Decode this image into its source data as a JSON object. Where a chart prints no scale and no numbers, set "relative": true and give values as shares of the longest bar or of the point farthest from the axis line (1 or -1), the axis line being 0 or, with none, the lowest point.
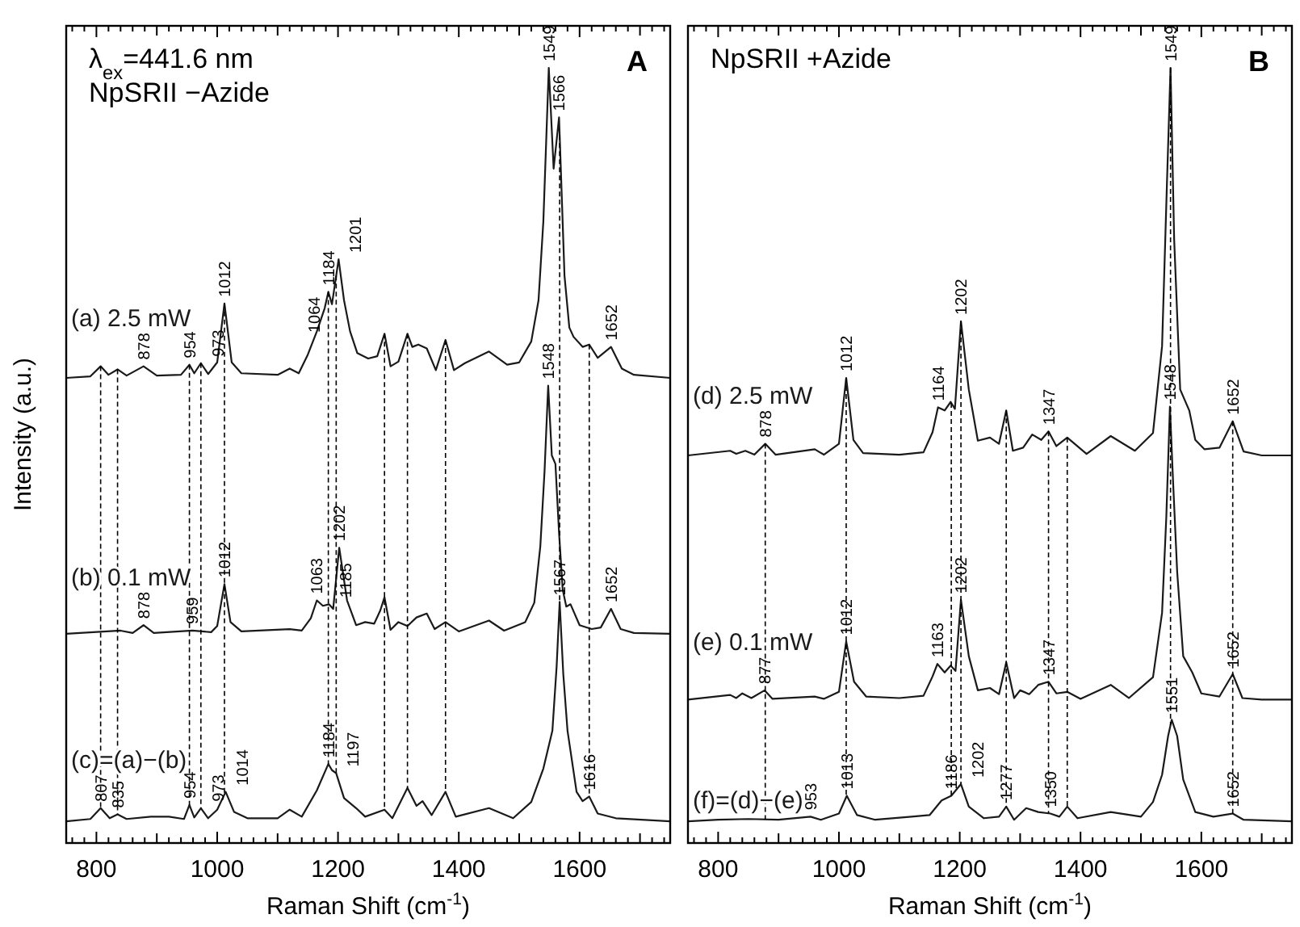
{
  "chart_data": [
    {
      "type": "line",
      "relative": true,
      "title": "λ$_{ex}$=441.6  nm",
      "subtitle": "NpSRII −Azide",
      "xlabel": "Raman Shift (cm$^{-1}$)",
      "ylabel": "Intensity (a.u.)",
      "xlim": [
        750,
        1750
      ],
      "xticks": [
        {
          "value": 760,
          "label": null
        },
        {
          "value": 780,
          "label": null
        },
        800,
        {
          "value": 820,
          "label": null
        },
        {
          "value": 840,
          "label": null
        },
        {
          "value": 860,
          "label": null
        },
        {
          "value": 880,
          "label": null
        },
        {
          "value": 900,
          "label": null
        },
        {
          "value": 920,
          "label": null
        },
        {
          "value": 940,
          "label": null
        },
        {
          "value": 960,
          "label": null
        },
        {
          "value": 980,
          "label": null
        },
        1000,
        {
          "value": 1020,
          "label": null
        },
        {
          "value": 1040,
          "label": null
        },
        {
          "value": 1060,
          "label": null
        },
        {
          "value": 1080,
          "label": null
        },
        {
          "value": 1100,
          "label": null
        },
        {
          "value": 1120,
          "label": null
        },
        {
          "value": 1140,
          "label": null
        },
        {
          "value": 1160,
          "label": null
        },
        {
          "value": 1180,
          "label": null
        },
        1200,
        {
          "value": 1220,
          "label": null
        },
        {
          "value": 1240,
          "label": null
        },
        {
          "value": 1260,
          "label": null
        },
        {
          "value": 1280,
          "label": null
        },
        {
          "value": 1300,
          "label": null
        },
        {
          "value": 1320,
          "label": null
        },
        {
          "value": 1340,
          "label": null
        },
        {
          "value": 1360,
          "label": null
        },
        {
          "value": 1380,
          "label": null
        },
        1400,
        {
          "value": 1420,
          "label": null
        },
        {
          "value": 1440,
          "label": null
        },
        {
          "value": 1460,
          "label": null
        },
        {
          "value": 1480,
          "label": null
        },
        {
          "value": 1500,
          "label": null
        },
        {
          "value": 1520,
          "label": null
        },
        {
          "value": 1540,
          "label": null
        },
        {
          "value": 1560,
          "label": null
        },
        {
          "value": 1580,
          "label": null
        },
        1600,
        {
          "value": 1620,
          "label": null
        },
        {
          "value": 1640,
          "label": null
        },
        {
          "value": 1660,
          "label": null
        },
        {
          "value": 1680,
          "label": null
        },
        {
          "value": 1700,
          "label": null
        },
        {
          "value": 1720,
          "label": null
        },
        {
          "value": 1740,
          "label": null
        }
      ],
      "series": [
        {
          "name": "(a) 2.5 mW",
          "color": "#1a1a1a",
          "x": [
            750,
            790,
            807,
            820,
            835,
            850,
            878,
            900,
            940,
            954,
            962,
            973,
            985,
            1000,
            1012,
            1024,
            1040,
            1100,
            1120,
            1135,
            1150,
            1165,
            1178,
            1184,
            1190,
            1201,
            1210,
            1220,
            1232,
            1250,
            1265,
            1277,
            1287,
            1300,
            1315,
            1323,
            1333,
            1347,
            1362,
            1378,
            1392,
            1410,
            1450,
            1480,
            1500,
            1520,
            1532,
            1540,
            1549,
            1557,
            1566,
            1575,
            1583,
            1590,
            1605,
            1616,
            1630,
            1652,
            1670,
            1690,
            1750
          ],
          "values": [
            0.6,
            0.602,
            0.615,
            0.604,
            0.611,
            0.603,
            0.615,
            0.603,
            0.604,
            0.617,
            0.606,
            0.619,
            0.605,
            0.62,
            0.696,
            0.62,
            0.606,
            0.604,
            0.612,
            0.606,
            0.63,
            0.66,
            0.69,
            0.711,
            0.695,
            0.753,
            0.7,
            0.66,
            0.632,
            0.625,
            0.628,
            0.657,
            0.615,
            0.621,
            0.657,
            0.64,
            0.643,
            0.638,
            0.61,
            0.649,
            0.61,
            0.619,
            0.634,
            0.617,
            0.62,
            0.647,
            0.7,
            0.802,
            1.0,
            0.87,
            0.936,
            0.732,
            0.665,
            0.653,
            0.64,
            0.643,
            0.626,
            0.64,
            0.612,
            0.604,
            0.6
          ]
        },
        {
          "name": "(b) 0.1 mW",
          "color": "#1a1a1a",
          "x": [
            750,
            840,
            860,
            878,
            895,
            959,
            990,
            1000,
            1012,
            1022,
            1040,
            1120,
            1140,
            1155,
            1165,
            1175,
            1185,
            1192,
            1202,
            1215,
            1230,
            1245,
            1260,
            1270,
            1277,
            1287,
            1300,
            1315,
            1330,
            1347,
            1360,
            1378,
            1400,
            1450,
            1475,
            1510,
            1525,
            1535,
            1542,
            1548,
            1554,
            1560,
            1566,
            1572,
            1578,
            1585,
            1600,
            1620,
            1635,
            1652,
            1668,
            1690,
            1750
          ],
          "values": [
            0.27,
            0.274,
            0.271,
            0.281,
            0.271,
            0.274,
            0.272,
            0.28,
            0.334,
            0.285,
            0.273,
            0.276,
            0.274,
            0.29,
            0.313,
            0.306,
            0.308,
            0.302,
            0.381,
            0.313,
            0.281,
            0.285,
            0.283,
            0.3,
            0.317,
            0.275,
            0.285,
            0.28,
            0.291,
            0.296,
            0.276,
            0.285,
            0.273,
            0.287,
            0.274,
            0.285,
            0.31,
            0.383,
            0.48,
            0.59,
            0.5,
            0.489,
            0.4,
            0.327,
            0.305,
            0.308,
            0.281,
            0.276,
            0.278,
            0.302,
            0.276,
            0.271,
            0.27
          ]
        },
        {
          "name": "(c)=(a)−(b)",
          "color": "#1a1a1a",
          "x": [
            750,
            790,
            807,
            822,
            835,
            850,
            890,
            920,
            945,
            954,
            962,
            973,
            985,
            1000,
            1014,
            1028,
            1050,
            1100,
            1120,
            1140,
            1165,
            1184,
            1190,
            1197,
            1210,
            1230,
            1245,
            1277,
            1290,
            1315,
            1330,
            1340,
            1355,
            1378,
            1395,
            1450,
            1490,
            1520,
            1540,
            1555,
            1562,
            1567,
            1573,
            1580,
            1595,
            1605,
            1616,
            1630,
            1660,
            1750
          ],
          "values": [
            0.028,
            0.031,
            0.045,
            0.032,
            0.037,
            0.031,
            0.034,
            0.034,
            0.031,
            0.049,
            0.033,
            0.045,
            0.032,
            0.043,
            0.066,
            0.04,
            0.032,
            0.032,
            0.043,
            0.034,
            0.068,
            0.102,
            0.094,
            0.09,
            0.058,
            0.045,
            0.034,
            0.043,
            0.032,
            0.071,
            0.048,
            0.054,
            0.036,
            0.066,
            0.034,
            0.045,
            0.032,
            0.053,
            0.096,
            0.145,
            0.228,
            0.311,
            0.218,
            0.145,
            0.066,
            0.054,
            0.06,
            0.038,
            0.032,
            0.028
          ]
        }
      ],
      "ref_lines": [
        {
          "axis": "x",
          "value": 807,
          "line_style": "dashed"
        },
        {
          "axis": "x",
          "value": 835,
          "line_style": "dashed"
        },
        {
          "axis": "x",
          "value": 954,
          "line_style": "dashed"
        },
        {
          "axis": "x",
          "value": 973,
          "line_style": "dashed"
        },
        {
          "axis": "x",
          "value": 1012,
          "line_style": "dashed"
        },
        {
          "axis": "x",
          "value": 1184,
          "line_style": "dashed"
        },
        {
          "axis": "x",
          "value": 1197,
          "line_style": "dashed"
        },
        {
          "axis": "x",
          "value": 1277,
          "line_style": "dashed"
        },
        {
          "axis": "x",
          "value": 1315,
          "line_style": "dashed"
        },
        {
          "axis": "x",
          "value": 1378,
          "line_style": "dashed"
        },
        {
          "axis": "x",
          "value": 1567,
          "line_style": "dashed"
        },
        {
          "axis": "x",
          "value": 1616,
          "line_style": "dashed"
        }
      ],
      "annotations": [
        "A",
        {
          "text": "878",
          "x": 878,
          "y": 0.615
        },
        {
          "text": "954",
          "x": 954,
          "y": 0.617
        },
        {
          "text": "973",
          "x": 973,
          "y": 0.619
        },
        {
          "text": "1012",
          "x": 1012,
          "y": 0.696
        },
        {
          "text": "1064",
          "x": 1160,
          "y": 0.65
        },
        {
          "text": "1184",
          "x": 1184,
          "y": 0.711
        },
        {
          "text": "1201",
          "x": 1201,
          "y": 0.753
        },
        {
          "text": "1549",
          "x": 1549,
          "y": 1.0
        },
        {
          "text": "1566",
          "x": 1566,
          "y": 0.936
        },
        {
          "text": "1652",
          "x": 1652,
          "y": 0.64
        },
        {
          "text": "878",
          "x": 878,
          "y": 0.281
        },
        {
          "text": "959",
          "x": 959,
          "y": 0.274
        },
        {
          "text": "1012",
          "x": 1012,
          "y": 0.334
        },
        {
          "text": "1063",
          "x": 1165,
          "y": 0.313
        },
        {
          "text": "1185",
          "x": 1185,
          "y": 0.308
        },
        {
          "text": "1202",
          "x": 1202,
          "y": 0.381
        },
        {
          "text": "1548",
          "x": 1548,
          "y": 0.59
        },
        {
          "text": "1652",
          "x": 1652,
          "y": 0.302
        },
        {
          "text": "807",
          "x": 807,
          "y": 0.045
        },
        {
          "text": "835",
          "x": 835,
          "y": 0.037
        },
        {
          "text": "954",
          "x": 954,
          "y": 0.049
        },
        {
          "text": "973",
          "x": 973,
          "y": 0.045
        },
        {
          "text": "1014",
          "x": 1014,
          "y": 0.066
        },
        {
          "text": "1184",
          "x": 1184,
          "y": 0.102
        },
        {
          "text": "1197",
          "x": 1197,
          "y": 0.09
        },
        {
          "text": "1567",
          "x": 1567,
          "y": 0.311
        },
        {
          "text": "1616",
          "x": 1616,
          "y": 0.06
        }
      ]
    },
    {
      "type": "line",
      "relative": true,
      "title": "NpSRII +Azide",
      "xlabel": "Raman Shift (cm$^{-1}$)",
      "xlim": [
        750,
        1750
      ],
      "xticks": [
        {
          "value": 760,
          "label": null
        },
        {
          "value": 780,
          "label": null
        },
        800,
        {
          "value": 820,
          "label": null
        },
        {
          "value": 840,
          "label": null
        },
        {
          "value": 860,
          "label": null
        },
        {
          "value": 880,
          "label": null
        },
        {
          "value": 900,
          "label": null
        },
        {
          "value": 920,
          "label": null
        },
        {
          "value": 940,
          "label": null
        },
        {
          "value": 960,
          "label": null
        },
        {
          "value": 980,
          "label": null
        },
        1000,
        {
          "value": 1020,
          "label": null
        },
        {
          "value": 1040,
          "label": null
        },
        {
          "value": 1060,
          "label": null
        },
        {
          "value": 1080,
          "label": null
        },
        {
          "value": 1100,
          "label": null
        },
        {
          "value": 1120,
          "label": null
        },
        {
          "value": 1140,
          "label": null
        },
        {
          "value": 1160,
          "label": null
        },
        {
          "value": 1180,
          "label": null
        },
        1200,
        {
          "value": 1220,
          "label": null
        },
        {
          "value": 1240,
          "label": null
        },
        {
          "value": 1260,
          "label": null
        },
        {
          "value": 1280,
          "label": null
        },
        {
          "value": 1300,
          "label": null
        },
        {
          "value": 1320,
          "label": null
        },
        {
          "value": 1340,
          "label": null
        },
        {
          "value": 1360,
          "label": null
        },
        {
          "value": 1380,
          "label": null
        },
        1400,
        {
          "value": 1420,
          "label": null
        },
        {
          "value": 1440,
          "label": null
        },
        {
          "value": 1460,
          "label": null
        },
        {
          "value": 1480,
          "label": null
        },
        {
          "value": 1500,
          "label": null
        },
        {
          "value": 1520,
          "label": null
        },
        {
          "value": 1540,
          "label": null
        },
        {
          "value": 1560,
          "label": null
        },
        {
          "value": 1580,
          "label": null
        },
        1600,
        {
          "value": 1620,
          "label": null
        },
        {
          "value": 1640,
          "label": null
        },
        {
          "value": 1660,
          "label": null
        },
        {
          "value": 1680,
          "label": null
        },
        {
          "value": 1700,
          "label": null
        },
        {
          "value": 1720,
          "label": null
        },
        {
          "value": 1740,
          "label": null
        }
      ],
      "series": [
        {
          "name": "(d) 2.5 mW",
          "color": "#1a1a1a",
          "x": [
            750,
            820,
            830,
            845,
            860,
            878,
            895,
            960,
            975,
            1000,
            1012,
            1024,
            1040,
            1100,
            1140,
            1155,
            1164,
            1175,
            1185,
            1192,
            1202,
            1215,
            1230,
            1250,
            1265,
            1277,
            1288,
            1305,
            1320,
            1335,
            1347,
            1360,
            1378,
            1410,
            1450,
            1490,
            1520,
            1535,
            1543,
            1549,
            1555,
            1565,
            1580,
            1590,
            1605,
            1630,
            1652,
            1670,
            1700,
            1750
          ],
          "values": [
            0.5,
            0.506,
            0.502,
            0.506,
            0.501,
            0.515,
            0.501,
            0.508,
            0.501,
            0.515,
            0.6,
            0.52,
            0.503,
            0.501,
            0.504,
            0.53,
            0.562,
            0.558,
            0.569,
            0.56,
            0.673,
            0.585,
            0.519,
            0.523,
            0.515,
            0.558,
            0.506,
            0.51,
            0.527,
            0.52,
            0.531,
            0.512,
            0.523,
            0.502,
            0.525,
            0.506,
            0.529,
            0.641,
            0.849,
            1.0,
            0.779,
            0.585,
            0.558,
            0.52,
            0.508,
            0.51,
            0.544,
            0.505,
            0.5,
            0.5
          ]
        },
        {
          "name": "(e) 0.1 mW",
          "color": "#1a1a1a",
          "x": [
            750,
            820,
            830,
            840,
            855,
            877,
            890,
            960,
            975,
            1000,
            1012,
            1025,
            1045,
            1100,
            1140,
            1155,
            1163,
            1175,
            1185,
            1193,
            1202,
            1215,
            1230,
            1250,
            1265,
            1277,
            1290,
            1300,
            1315,
            1330,
            1347,
            1360,
            1378,
            1400,
            1450,
            1480,
            1520,
            1535,
            1542,
            1548,
            1553,
            1560,
            1570,
            1585,
            1600,
            1630,
            1652,
            1668,
            1700,
            1750
          ],
          "values": [
            0.185,
            0.191,
            0.187,
            0.193,
            0.187,
            0.197,
            0.186,
            0.189,
            0.186,
            0.195,
            0.26,
            0.208,
            0.189,
            0.187,
            0.19,
            0.215,
            0.231,
            0.22,
            0.229,
            0.222,
            0.314,
            0.241,
            0.197,
            0.2,
            0.192,
            0.233,
            0.187,
            0.197,
            0.192,
            0.204,
            0.208,
            0.193,
            0.195,
            0.186,
            0.204,
            0.187,
            0.214,
            0.297,
            0.42,
            0.563,
            0.47,
            0.35,
            0.241,
            0.22,
            0.193,
            0.189,
            0.218,
            0.187,
            0.185,
            0.185
          ]
        },
        {
          "name": "(f)=(d)−(e)",
          "color": "#1a1a1a",
          "x": [
            750,
            800,
            850,
            900,
            953,
            970,
            1000,
            1013,
            1030,
            1060,
            1120,
            1150,
            1170,
            1186,
            1202,
            1215,
            1240,
            1265,
            1277,
            1290,
            1310,
            1330,
            1350,
            1365,
            1378,
            1395,
            1450,
            1500,
            1520,
            1535,
            1545,
            1551,
            1560,
            1570,
            1590,
            1620,
            1652,
            1670,
            1750
          ],
          "values": [
            0.028,
            0.03,
            0.031,
            0.03,
            0.034,
            0.03,
            0.038,
            0.061,
            0.036,
            0.03,
            0.034,
            0.036,
            0.055,
            0.061,
            0.076,
            0.047,
            0.032,
            0.034,
            0.047,
            0.03,
            0.045,
            0.04,
            0.038,
            0.034,
            0.047,
            0.032,
            0.04,
            0.034,
            0.053,
            0.088,
            0.138,
            0.159,
            0.138,
            0.082,
            0.04,
            0.034,
            0.038,
            0.03,
            0.028
          ]
        }
      ],
      "ref_lines": [
        {
          "axis": "x",
          "value": 878,
          "line_style": "dashed"
        },
        {
          "axis": "x",
          "value": 1012,
          "line_style": "dashed"
        },
        {
          "axis": "x",
          "value": 1186,
          "line_style": "dashed"
        },
        {
          "axis": "x",
          "value": 1202,
          "line_style": "dashed"
        },
        {
          "axis": "x",
          "value": 1277,
          "line_style": "dashed"
        },
        {
          "axis": "x",
          "value": 1347,
          "line_style": "dashed"
        },
        {
          "axis": "x",
          "value": 1378,
          "line_style": "dashed"
        },
        {
          "axis": "x",
          "value": 1549,
          "line_style": "dashed"
        },
        {
          "axis": "x",
          "value": 1652,
          "line_style": "dashed"
        }
      ],
      "annotations": [
        "B",
        {
          "text": "878",
          "x": 878,
          "y": 0.515
        },
        {
          "text": "1012",
          "x": 1012,
          "y": 0.6
        },
        {
          "text": "1164",
          "x": 1164,
          "y": 0.562
        },
        {
          "text": "1202",
          "x": 1202,
          "y": 0.673
        },
        {
          "text": "1347",
          "x": 1347,
          "y": 0.531
        },
        {
          "text": "1549",
          "x": 1549,
          "y": 1.0
        },
        {
          "text": "1652",
          "x": 1652,
          "y": 0.544
        },
        {
          "text": "877",
          "x": 877,
          "y": 0.197
        },
        {
          "text": "1012",
          "x": 1012,
          "y": 0.26
        },
        {
          "text": "1163",
          "x": 1163,
          "y": 0.231
        },
        {
          "text": "1202",
          "x": 1202,
          "y": 0.314
        },
        {
          "text": "1347",
          "x": 1347,
          "y": 0.208
        },
        {
          "text": "1548",
          "x": 1548,
          "y": 0.563
        },
        {
          "text": "1652",
          "x": 1652,
          "y": 0.218
        },
        {
          "text": "953",
          "x": 953,
          "y": 0.034
        },
        {
          "text": "1013",
          "x": 1013,
          "y": 0.061
        },
        {
          "text": "1186",
          "x": 1186,
          "y": 0.061
        },
        {
          "text": "1202",
          "x": 1202,
          "y": 0.076
        },
        {
          "text": "1277",
          "x": 1277,
          "y": 0.047
        },
        {
          "text": "1350",
          "x": 1350,
          "y": 0.038
        },
        {
          "text": "1551",
          "x": 1551,
          "y": 0.159
        },
        {
          "text": "1652",
          "x": 1652,
          "y": 0.038
        }
      ]
    }
  ]
}
